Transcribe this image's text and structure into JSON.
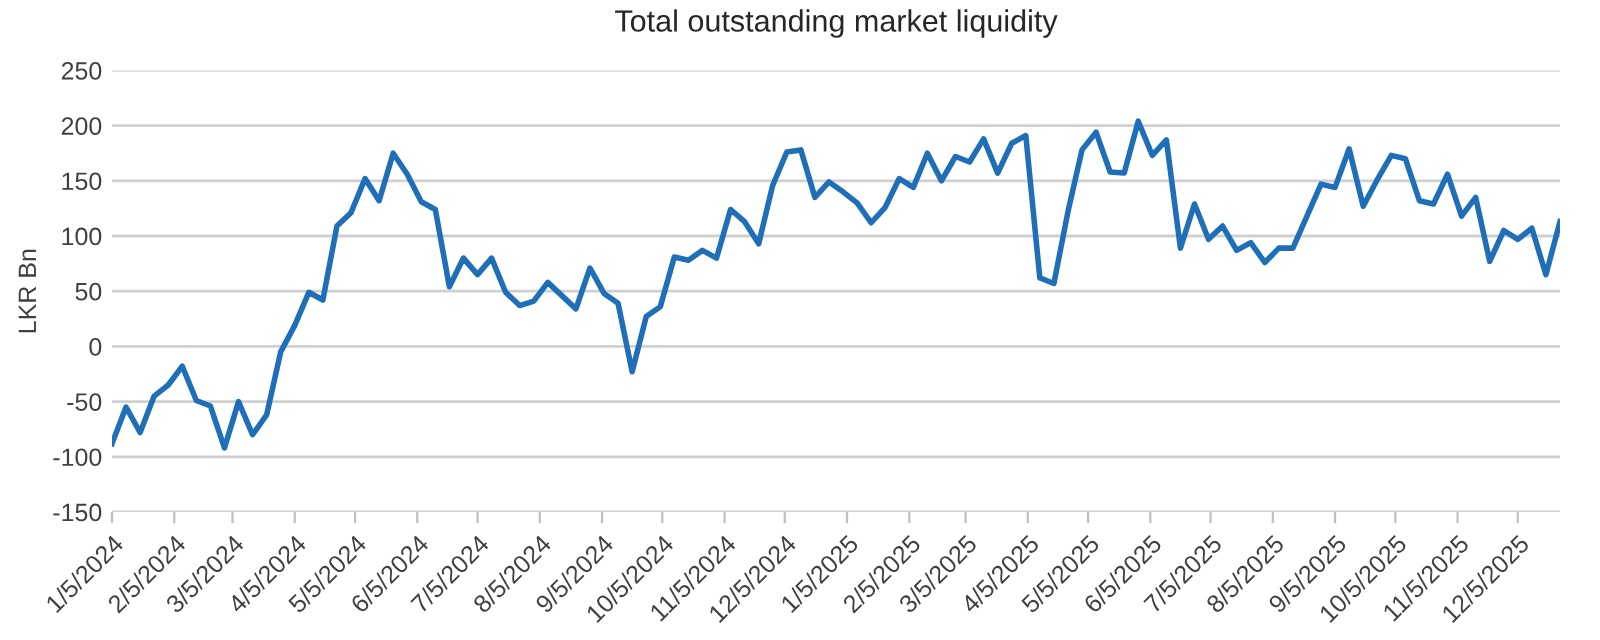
{
  "chart_data": {
    "type": "line",
    "title": "Total outstanding market liquidity",
    "ylabel": "LKR Bn",
    "x": [
      "2024-01-05",
      "2024-01-12",
      "2024-01-19",
      "2024-01-26",
      "2024-02-02",
      "2024-02-09",
      "2024-02-16",
      "2024-02-23",
      "2024-03-01",
      "2024-03-08",
      "2024-03-15",
      "2024-03-22",
      "2024-03-29",
      "2024-04-05",
      "2024-04-12",
      "2024-04-19",
      "2024-04-26",
      "2024-05-03",
      "2024-05-10",
      "2024-05-17",
      "2024-05-24",
      "2024-05-31",
      "2024-06-07",
      "2024-06-14",
      "2024-06-21",
      "2024-06-28",
      "2024-07-05",
      "2024-07-12",
      "2024-07-19",
      "2024-07-26",
      "2024-08-02",
      "2024-08-09",
      "2024-08-16",
      "2024-08-23",
      "2024-08-30",
      "2024-09-06",
      "2024-09-13",
      "2024-09-20",
      "2024-09-27",
      "2024-10-04",
      "2024-10-11",
      "2024-10-18",
      "2024-10-25",
      "2024-11-01",
      "2024-11-08",
      "2024-11-15",
      "2024-11-22",
      "2024-11-29",
      "2024-12-06",
      "2024-12-13",
      "2024-12-20",
      "2024-12-27",
      "2025-01-03",
      "2025-01-10",
      "2025-01-17",
      "2025-01-24",
      "2025-01-31",
      "2025-02-07",
      "2025-02-14",
      "2025-02-21",
      "2025-02-28",
      "2025-03-07",
      "2025-03-14",
      "2025-03-21",
      "2025-03-28",
      "2025-04-04",
      "2025-04-11",
      "2025-04-18",
      "2025-04-25",
      "2025-05-02",
      "2025-05-09",
      "2025-05-16",
      "2025-05-23",
      "2025-05-30",
      "2025-06-06",
      "2025-06-13",
      "2025-06-20",
      "2025-06-27",
      "2025-07-04",
      "2025-07-11",
      "2025-07-18",
      "2025-07-25",
      "2025-08-01",
      "2025-08-08",
      "2025-08-15",
      "2025-08-22",
      "2025-08-29",
      "2025-09-05",
      "2025-09-12",
      "2025-09-19",
      "2025-09-26",
      "2025-10-03",
      "2025-10-10",
      "2025-10-17",
      "2025-10-24",
      "2025-10-31",
      "2025-11-07",
      "2025-11-14",
      "2025-11-21",
      "2025-11-28",
      "2025-12-05",
      "2025-12-12",
      "2025-12-19",
      "2025-12-26"
    ],
    "series": [
      {
        "color": "#1f6fb8",
        "values": [
          -88,
          -55,
          -78,
          -45,
          -35,
          -18,
          -49,
          -54,
          -92,
          -50,
          -80,
          -62,
          -5,
          19,
          49,
          42,
          109,
          121,
          152,
          132,
          175,
          156,
          131,
          124,
          54,
          80,
          65,
          80,
          49,
          37,
          41,
          58,
          46,
          34,
          71,
          48,
          39,
          -23,
          27,
          36,
          81,
          78,
          87,
          80,
          124,
          113,
          93,
          146,
          176,
          178,
          135,
          149,
          140,
          130,
          112,
          126,
          152,
          144,
          175,
          150,
          172,
          167,
          188,
          157,
          184,
          191,
          62,
          57,
          122,
          178,
          194,
          158,
          157,
          204,
          173,
          187,
          89,
          129,
          97,
          109,
          87,
          94,
          76,
          89,
          89,
          118,
          147,
          144,
          179,
          127,
          151,
          173,
          170,
          132,
          129,
          156,
          118,
          135,
          77,
          105,
          97,
          107,
          65,
          113
        ]
      }
    ],
    "xlim": [
      "2024-01-05",
      "2025-12-26"
    ],
    "xticks": [
      {
        "value": "2024-01-05",
        "label": "1/5/2024"
      },
      {
        "value": "2024-02-05",
        "label": "2/5/2024"
      },
      {
        "value": "2024-03-05",
        "label": "3/5/2024"
      },
      {
        "value": "2024-04-05",
        "label": "4/5/2024"
      },
      {
        "value": "2024-05-05",
        "label": "5/5/2024"
      },
      {
        "value": "2024-06-05",
        "label": "6/5/2024"
      },
      {
        "value": "2024-07-05",
        "label": "7/5/2024"
      },
      {
        "value": "2024-08-05",
        "label": "8/5/2024"
      },
      {
        "value": "2024-09-05",
        "label": "9/5/2024"
      },
      {
        "value": "2024-10-05",
        "label": "10/5/2024"
      },
      {
        "value": "2024-11-05",
        "label": "11/5/2024"
      },
      {
        "value": "2024-12-05",
        "label": "12/5/2024"
      },
      {
        "value": "2025-01-05",
        "label": "1/5/2025"
      },
      {
        "value": "2025-02-05",
        "label": "2/5/2025"
      },
      {
        "value": "2025-03-05",
        "label": "3/5/2025"
      },
      {
        "value": "2025-04-05",
        "label": "4/5/2025"
      },
      {
        "value": "2025-05-05",
        "label": "5/5/2025"
      },
      {
        "value": "2025-06-05",
        "label": "6/5/2025"
      },
      {
        "value": "2025-07-05",
        "label": "7/5/2025"
      },
      {
        "value": "2025-08-05",
        "label": "8/5/2025"
      },
      {
        "value": "2025-09-05",
        "label": "9/5/2025"
      },
      {
        "value": "2025-10-05",
        "label": "10/5/2025"
      },
      {
        "value": "2025-11-05",
        "label": "11/5/2025"
      },
      {
        "value": "2025-12-05",
        "label": "12/5/2025"
      }
    ],
    "ylim": [
      -150,
      250
    ],
    "yticks": [
      -150,
      -100,
      -50,
      0,
      50,
      100,
      150,
      200,
      250
    ],
    "grid": "y",
    "marker": "none",
    "line_style": "solid"
  }
}
